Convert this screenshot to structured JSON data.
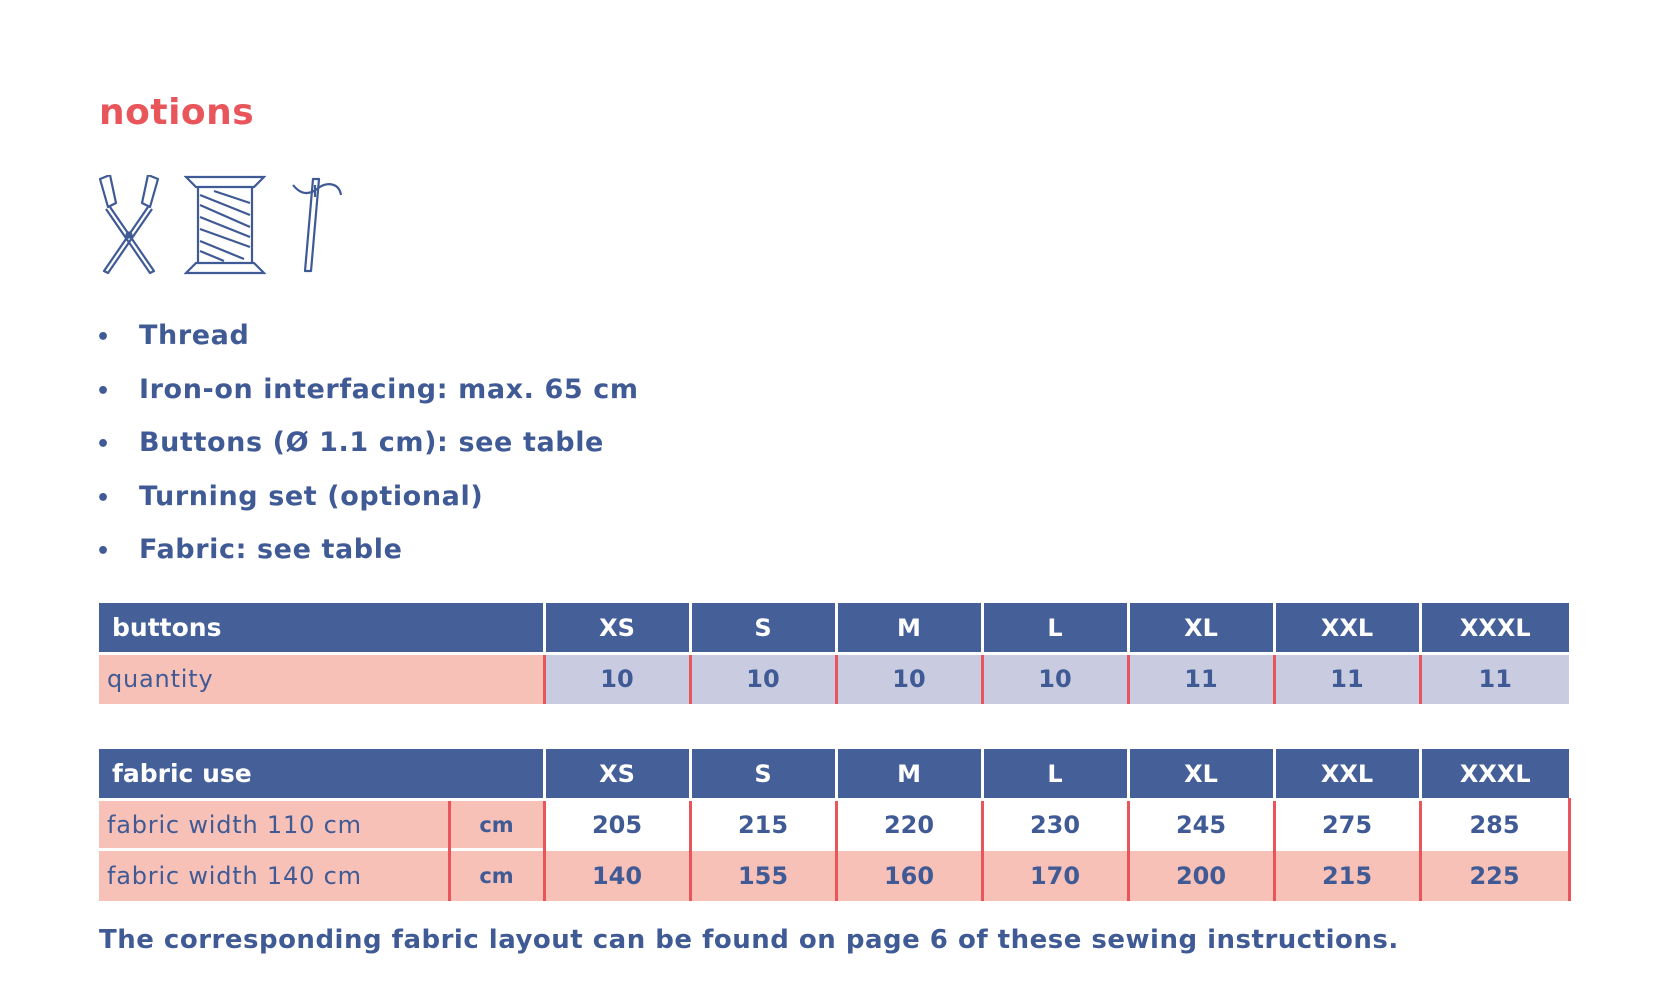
{
  "title": "notions",
  "icons": [
    "scissors-icon",
    "thread-spool-icon",
    "needle-icon"
  ],
  "bullet_char": "•",
  "items": [
    "Thread",
    "Iron-on interfacing: max. 65 cm",
    "Buttons (Ø 1.1 cm): see table",
    "Turning set (optional)",
    "Fabric: see table"
  ],
  "buttons_table": {
    "header": "buttons",
    "sizes": [
      "XS",
      "S",
      "M",
      "L",
      "XL",
      "XXL",
      "XXXL"
    ],
    "rows": [
      {
        "label": "quantity",
        "values": [
          "10",
          "10",
          "10",
          "10",
          "11",
          "11",
          "11"
        ]
      }
    ]
  },
  "fabric_table": {
    "header": "fabric use",
    "sizes": [
      "XS",
      "S",
      "M",
      "L",
      "XL",
      "XXL",
      "XXXL"
    ],
    "rows": [
      {
        "label": "fabric width 110 cm",
        "unit": "cm",
        "values": [
          "205",
          "215",
          "220",
          "230",
          "245",
          "275",
          "285"
        ]
      },
      {
        "label": "fabric width 140 cm",
        "unit": "cm",
        "values": [
          "140",
          "155",
          "160",
          "170",
          "200",
          "215",
          "225"
        ]
      }
    ]
  },
  "footer": "The corresponding fabric layout can be found on page 6 of these sewing instructions.",
  "colors": {
    "accent_red": "#e8555a",
    "navy": "#3f5a95",
    "header_blue": "#455f98",
    "pink": "#f8c1b8",
    "lavender": "#c9cce0"
  }
}
